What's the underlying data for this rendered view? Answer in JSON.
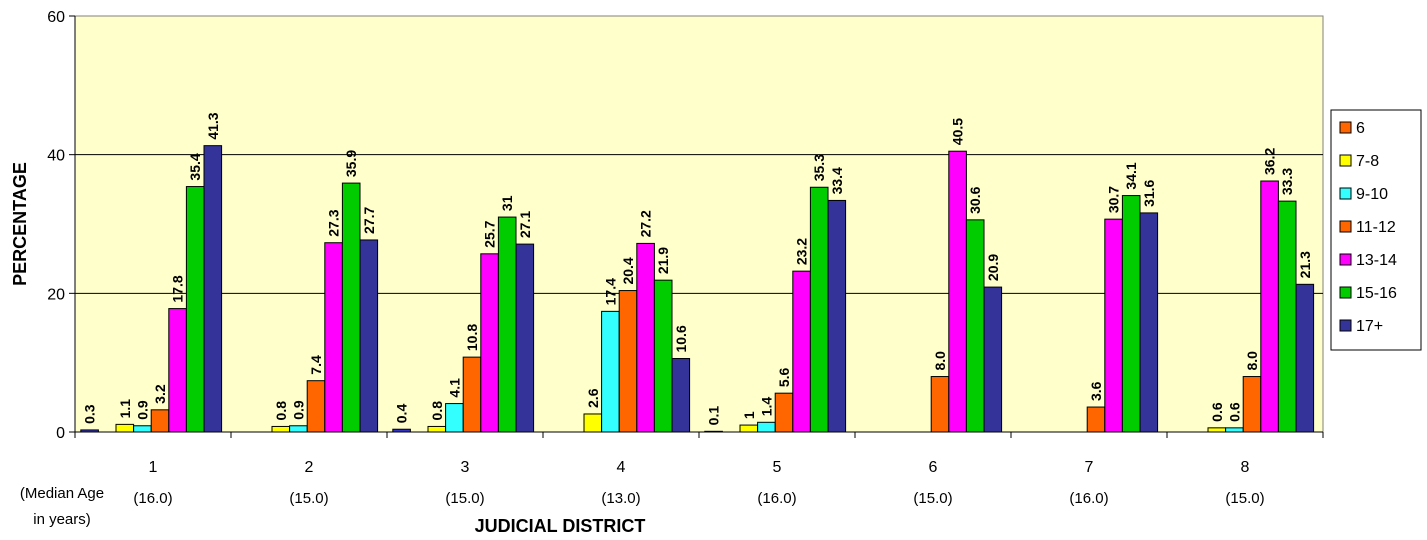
{
  "chart_data": {
    "type": "bar",
    "xlabel": "JUDICIAL DISTRICT",
    "ylabel": "PERCENTAGE",
    "ylim": [
      0,
      60
    ],
    "yticks": [
      0,
      20,
      40,
      60
    ],
    "categories": [
      "1",
      "2",
      "3",
      "4",
      "5",
      "6",
      "7",
      "8"
    ],
    "subcategory_note": [
      "(Median Age",
      "in years)"
    ],
    "median_ages": [
      "(16.0)",
      "(15.0)",
      "(15.0)",
      "(13.0)",
      "(16.0)",
      "(15.0)",
      "(16.0)",
      "(15.0)"
    ],
    "grid": "horizontal",
    "legend_position": "right",
    "series": [
      {
        "name": "6",
        "color": "#FF6600",
        "values": [
          null,
          null,
          null,
          null,
          null,
          null,
          null,
          null
        ],
        "labels": [
          "",
          "",
          "",
          "",
          "",
          "",
          "",
          ""
        ]
      },
      {
        "name": "7-8",
        "color": "#FFFF00",
        "values": [
          1.1,
          0.8,
          0.8,
          2.6,
          1,
          null,
          null,
          0.6
        ],
        "labels": [
          "1.1",
          "0.8",
          "0.8",
          "2.6",
          "1",
          "",
          "",
          "0.6"
        ]
      },
      {
        "name": "9-10",
        "color": "#33FFFF",
        "values": [
          0.9,
          0.9,
          4.1,
          17.4,
          1.4,
          null,
          null,
          0.6
        ],
        "labels": [
          "0.9",
          "0.9",
          "4.1",
          "17.4",
          "1.4",
          "",
          "",
          "0.6"
        ]
      },
      {
        "name": "11-12",
        "color": "#FF6600",
        "values": [
          3.2,
          7.4,
          10.8,
          20.4,
          5.6,
          8.0,
          3.6,
          8.0
        ],
        "labels": [
          "3.2",
          "7.4",
          "10.8",
          "20.4",
          "5.6",
          "8.0",
          "3.6",
          "8.0"
        ]
      },
      {
        "name": "13-14",
        "color": "#FF00FF",
        "values": [
          17.8,
          27.3,
          25.7,
          27.2,
          23.2,
          40.5,
          30.7,
          36.2
        ],
        "labels": [
          "17.8",
          "27.3",
          "25.7",
          "27.2",
          "23.2",
          "40.5",
          "30.7",
          "36.2"
        ]
      },
      {
        "name": "15-16",
        "color": "#00CC00",
        "values": [
          35.4,
          35.9,
          31,
          21.9,
          35.3,
          30.6,
          34.1,
          33.3
        ],
        "labels": [
          "35.4",
          "35.9",
          "31",
          "21.9",
          "35.3",
          "30.6",
          "34.1",
          "33.3"
        ]
      },
      {
        "name": "17+",
        "color": "#333399",
        "values": [
          41.3,
          27.7,
          27.1,
          10.6,
          33.4,
          20.9,
          31.6,
          21.3
        ],
        "labels": [
          "41.3",
          "27.7",
          "27.1",
          "10.6",
          "33.4",
          "20.9",
          "31.6",
          "21.3"
        ]
      }
    ],
    "leading_small_bar": {
      "color": "#3333CC",
      "values": [
        0.3,
        null,
        0.4,
        null,
        0.1,
        null,
        null,
        null
      ],
      "labels": [
        "0.3",
        "",
        "0.4",
        "",
        "0.1",
        "",
        "",
        ""
      ]
    }
  }
}
